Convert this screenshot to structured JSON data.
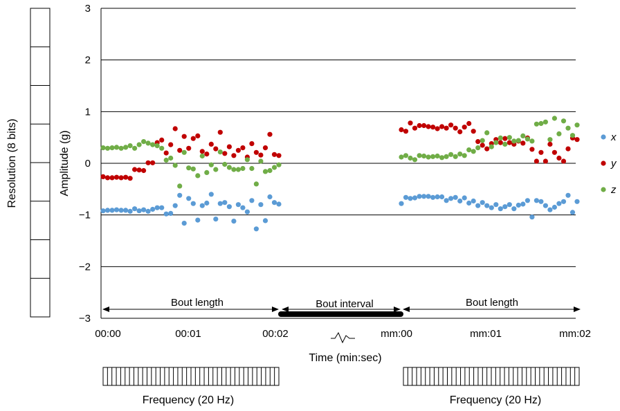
{
  "chart_data": {
    "type": "scatter",
    "ylabel": "Amplitude (g)",
    "xlabel": "Time (min:sec)",
    "ylim": [
      -3,
      3
    ],
    "yticks": [
      "3",
      "2",
      "1",
      "0",
      "−1",
      "−2",
      "−3"
    ],
    "xtick_labels": [
      "00:00",
      "00:01",
      "00:02",
      "mm:00",
      "mm:01",
      "mm:02"
    ],
    "grid": "horizontal",
    "legend_position": "right",
    "resolution_label": "Resolution (8 bits)",
    "resolution_cells": 8,
    "annotations": {
      "bout_length_1": "Bout length",
      "bout_interval": "Bout interval",
      "bout_length_2": "Bout length"
    },
    "frequency_labels": [
      "Frequency (20 Hz)",
      "Frequency (20 Hz)"
    ],
    "samples_per_bout": 40,
    "colors": {
      "x": "#5b9bd5",
      "y": "#c00000",
      "z": "#70ad47"
    },
    "bouts": [
      {
        "series": [
          {
            "name": "x",
            "values": [
              -0.92,
              -0.91,
              -0.91,
              -0.9,
              -0.91,
              -0.91,
              -0.93,
              -0.88,
              -0.92,
              -0.9,
              -0.93,
              -0.89,
              -0.86,
              -0.86,
              -0.98,
              -0.97,
              -0.82,
              -0.62,
              -1.16,
              -0.68,
              -0.78,
              -1.1,
              -0.82,
              -0.77,
              -0.6,
              -1.08,
              -0.78,
              -0.76,
              -0.84,
              -1.12,
              -0.8,
              -0.86,
              -0.94,
              -0.72,
              -1.27,
              -0.8,
              -1.11,
              -0.65,
              -0.76,
              -0.79
            ]
          },
          {
            "name": "y",
            "values": [
              -0.26,
              -0.28,
              -0.28,
              -0.27,
              -0.28,
              -0.27,
              -0.29,
              -0.12,
              -0.13,
              -0.14,
              0.01,
              0.01,
              0.4,
              0.45,
              0.2,
              0.36,
              0.67,
              0.25,
              0.52,
              0.29,
              0.48,
              0.53,
              0.23,
              0.18,
              0.37,
              0.28,
              0.6,
              0.19,
              0.32,
              0.15,
              0.25,
              0.3,
              0.12,
              0.38,
              0.21,
              0.16,
              0.3,
              0.56,
              0.17,
              0.15
            ]
          },
          {
            "name": "z",
            "values": [
              0.3,
              0.29,
              0.3,
              0.31,
              0.29,
              0.31,
              0.34,
              0.29,
              0.36,
              0.42,
              0.39,
              0.36,
              0.34,
              0.29,
              0.06,
              0.1,
              -0.04,
              -0.44,
              0.21,
              -0.09,
              -0.11,
              -0.24,
              0.14,
              -0.18,
              -0.03,
              -0.12,
              0.22,
              -0.02,
              -0.08,
              -0.12,
              -0.12,
              -0.1,
              0.07,
              -0.1,
              -0.4,
              0.04,
              -0.16,
              -0.14,
              -0.08,
              -0.03
            ]
          }
        ]
      },
      {
        "series": [
          {
            "name": "x",
            "values": [
              -0.78,
              -0.66,
              -0.68,
              -0.67,
              -0.64,
              -0.64,
              -0.64,
              -0.66,
              -0.65,
              -0.65,
              -0.72,
              -0.68,
              -0.66,
              -0.73,
              -0.67,
              -0.77,
              -0.73,
              -0.82,
              -0.76,
              -0.82,
              -0.86,
              -0.8,
              -0.88,
              -0.84,
              -0.8,
              -0.88,
              -0.81,
              -0.79,
              -0.72,
              -1.04,
              -0.72,
              -0.74,
              -0.82,
              -0.9,
              -0.85,
              -0.78,
              -0.74,
              -0.62,
              -0.95,
              -0.74
            ]
          },
          {
            "name": "y",
            "values": [
              0.65,
              0.62,
              0.78,
              0.68,
              0.73,
              0.73,
              0.71,
              0.7,
              0.67,
              0.71,
              0.68,
              0.74,
              0.68,
              0.61,
              0.7,
              0.77,
              0.62,
              0.42,
              0.35,
              0.28,
              0.38,
              0.46,
              0.4,
              0.48,
              0.4,
              0.37,
              0.43,
              0.39,
              0.49,
              0.27,
              0.04,
              0.21,
              0.04,
              0.37,
              0.21,
              0.1,
              0.04,
              0.28,
              0.49,
              0.46
            ]
          },
          {
            "name": "z",
            "values": [
              0.12,
              0.15,
              0.1,
              0.07,
              0.15,
              0.14,
              0.12,
              0.13,
              0.14,
              0.11,
              0.13,
              0.17,
              0.13,
              0.18,
              0.15,
              0.26,
              0.23,
              0.3,
              0.44,
              0.59,
              0.32,
              0.4,
              0.49,
              0.37,
              0.5,
              0.43,
              0.44,
              0.53,
              0.47,
              0.43,
              0.76,
              0.77,
              0.8,
              0.46,
              0.87,
              0.57,
              0.82,
              0.68,
              0.54,
              0.74
            ]
          }
        ]
      }
    ]
  }
}
